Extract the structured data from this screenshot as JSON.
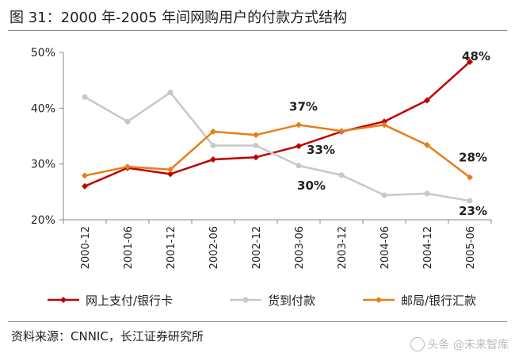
{
  "title": "图 31：2000 年-2005 年间网购用户的付款方式结构",
  "source": "资料来源：CNNIC，长江证券研究所",
  "watermark": "头条 @未来智库",
  "colors": {
    "online": "#c00000",
    "cod": "#c8c8c8",
    "post": "#e67e1a",
    "axis": "#888888"
  },
  "chart_data": {
    "type": "line",
    "categories": [
      "2000-12",
      "2001-06",
      "2001-12",
      "2002-06",
      "2002-12",
      "2003-06",
      "2003-12",
      "2004-06",
      "2004-12",
      "2005-06"
    ],
    "ylim": [
      0.2,
      0.5
    ],
    "yticks": [
      "20%",
      "30%",
      "40%",
      "50%"
    ],
    "grid": false,
    "legend_position": "bottom",
    "series": [
      {
        "name": "网上支付/银行卡",
        "color_key": "online",
        "marker": "diamond",
        "values": [
          0.26,
          0.293,
          0.282,
          0.308,
          0.312,
          0.332,
          0.358,
          0.376,
          0.414,
          0.483
        ]
      },
      {
        "name": "货到付款",
        "color_key": "cod",
        "marker": "circle",
        "values": [
          0.42,
          0.376,
          0.428,
          0.333,
          0.333,
          0.297,
          0.28,
          0.244,
          0.247,
          0.234
        ]
      },
      {
        "name": "邮局/银行汇款",
        "color_key": "post",
        "marker": "diamond",
        "values": [
          0.279,
          0.295,
          0.29,
          0.358,
          0.352,
          0.37,
          0.359,
          0.37,
          0.334,
          0.276
        ]
      }
    ],
    "annotations": [
      {
        "text": "48%",
        "series": 0,
        "index": 9
      },
      {
        "text": "33%",
        "series": 0,
        "index": 5
      },
      {
        "text": "37%",
        "series": 2,
        "index": 5
      },
      {
        "text": "30%",
        "series": 1,
        "index": 5
      },
      {
        "text": "28%",
        "series": 2,
        "index": 9
      },
      {
        "text": "23%",
        "series": 1,
        "index": 9
      }
    ]
  }
}
